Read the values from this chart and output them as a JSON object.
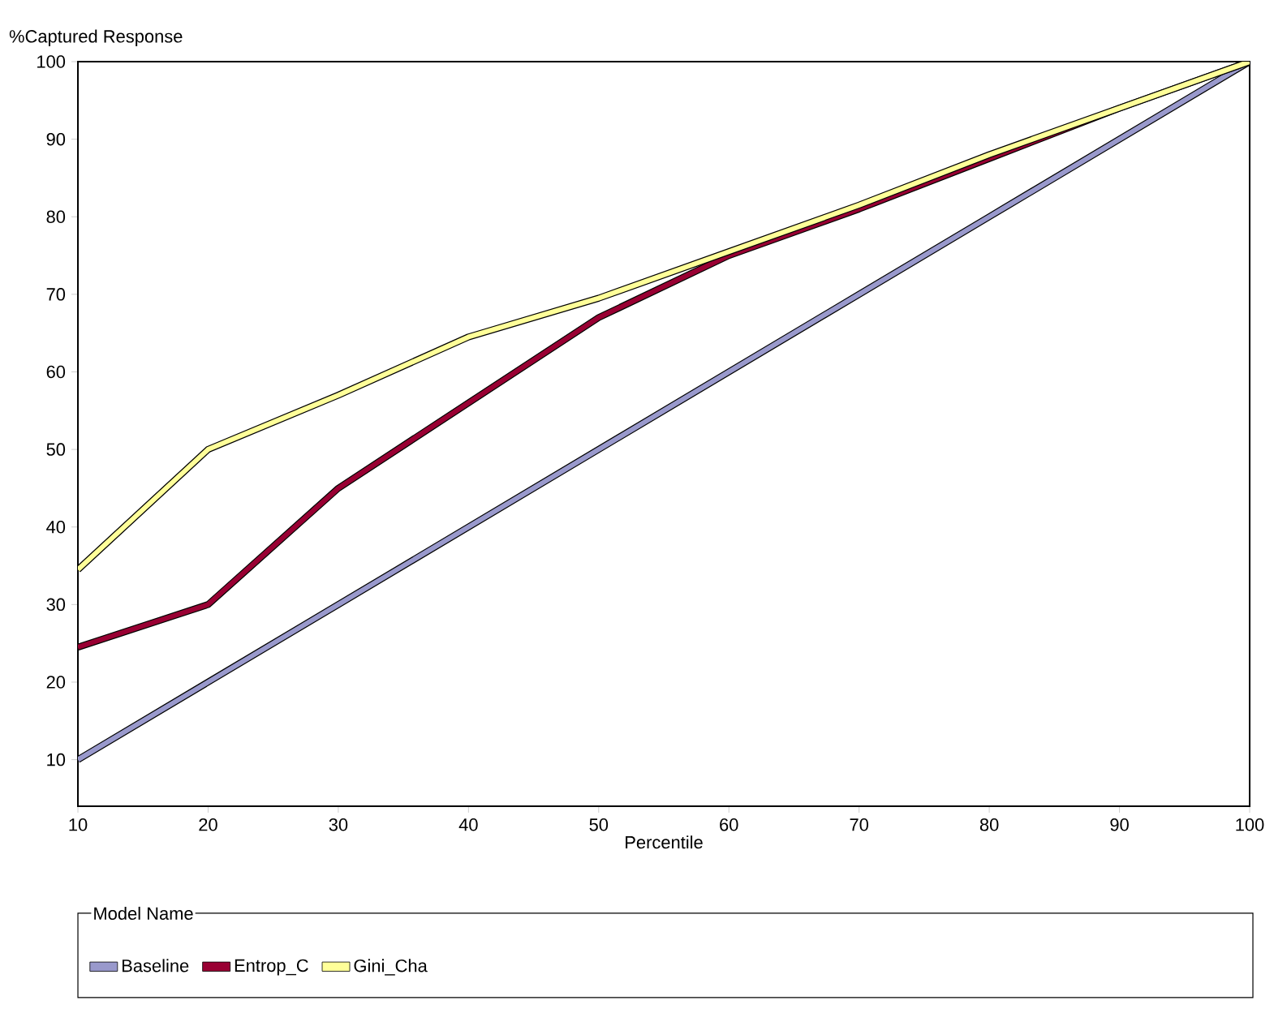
{
  "chart_data": {
    "type": "line",
    "xlabel": "Percentile",
    "ylabel": "%Captured Response",
    "legend_title": "Model Name",
    "legend": "bottom",
    "x": [
      10,
      20,
      30,
      40,
      50,
      60,
      70,
      80,
      90,
      100
    ],
    "series": [
      {
        "name": "Baseline",
        "color": "#9999cc",
        "values": [
          10,
          20,
          30,
          40,
          50,
          60,
          70,
          80,
          90,
          100
        ]
      },
      {
        "name": "Entrop_C",
        "color": "#990033",
        "values": [
          24.5,
          30,
          45,
          56,
          67,
          75,
          81,
          87.5,
          94,
          100
        ]
      },
      {
        "name": "Gini_Cha",
        "color": "#ffff99",
        "values": [
          34.5,
          50,
          57,
          64.5,
          69.5,
          75.5,
          81.5,
          88,
          94,
          100
        ]
      }
    ],
    "xlim": [
      10,
      100
    ],
    "ylim": [
      4,
      100
    ],
    "xticks": [
      10,
      20,
      30,
      40,
      50,
      60,
      70,
      80,
      90,
      100
    ],
    "yticks": [
      10,
      20,
      30,
      40,
      50,
      60,
      70,
      80,
      90,
      100
    ]
  }
}
